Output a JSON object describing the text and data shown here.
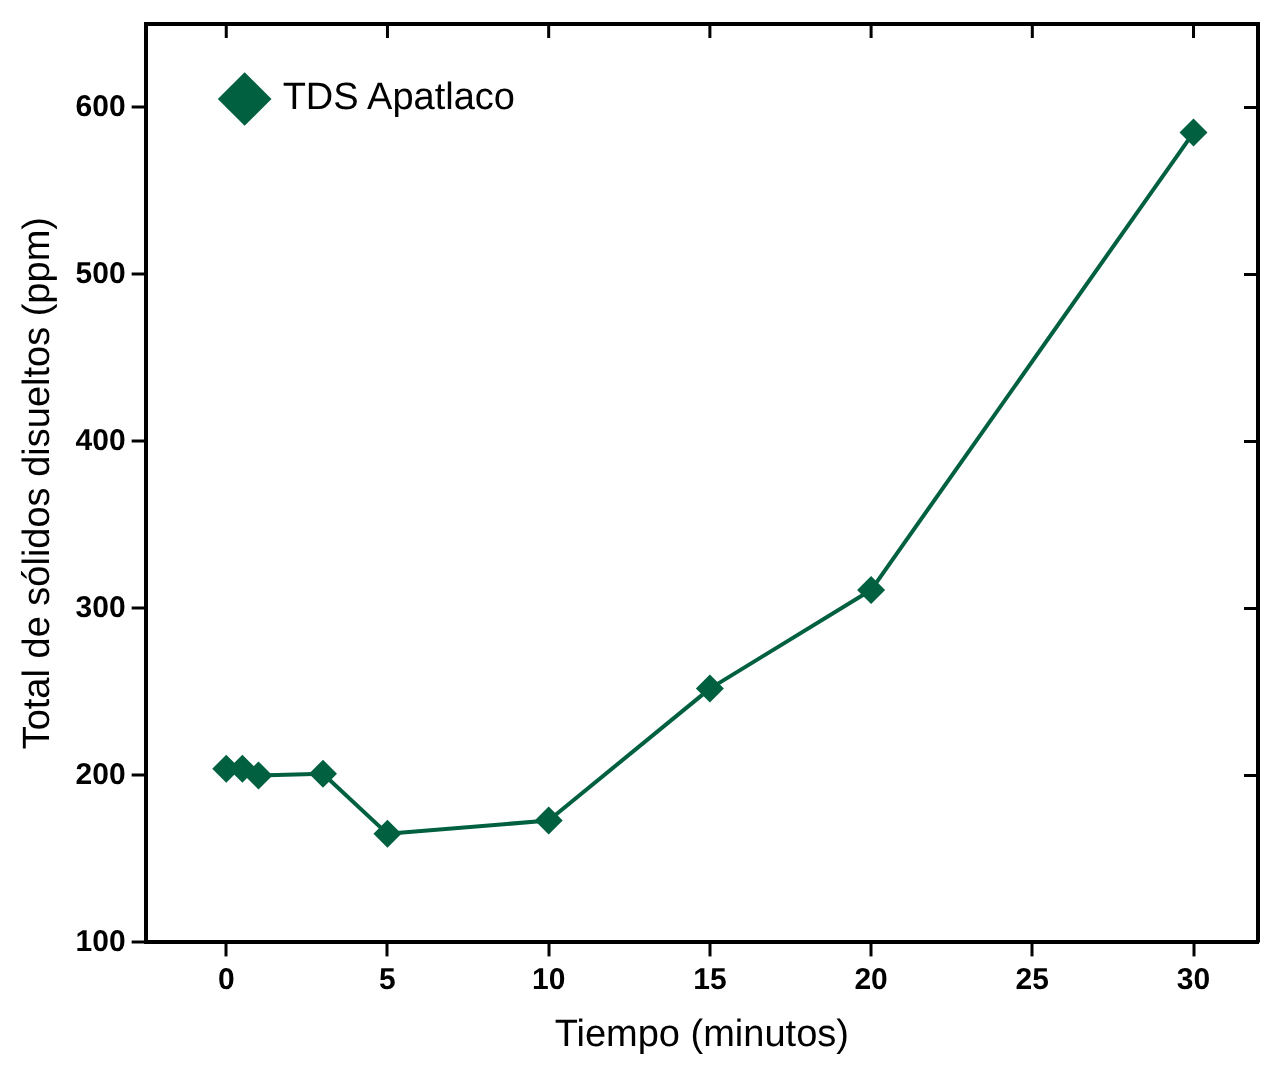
{
  "chart_data": {
    "type": "line",
    "xlabel": "Tiempo (minutos)",
    "ylabel": "Total de sólidos disueltos (ppm)",
    "x": [
      0,
      0.5,
      1,
      3,
      5,
      10,
      15,
      20,
      30
    ],
    "series": [
      {
        "name": "TDS Apatlaco",
        "color": "#006040",
        "values": [
          204,
          204,
          200,
          201,
          165,
          173,
          252,
          311,
          585
        ]
      }
    ],
    "xlim": [
      -2.5,
      32
    ],
    "xticks": [
      0,
      5,
      10,
      15,
      20,
      25,
      30
    ],
    "ylim": [
      100,
      650
    ],
    "yticks": [
      100,
      200,
      300,
      400,
      500,
      600
    ],
    "grid": false,
    "legend": "top left",
    "marker": "diamond",
    "line_style": "solid"
  }
}
